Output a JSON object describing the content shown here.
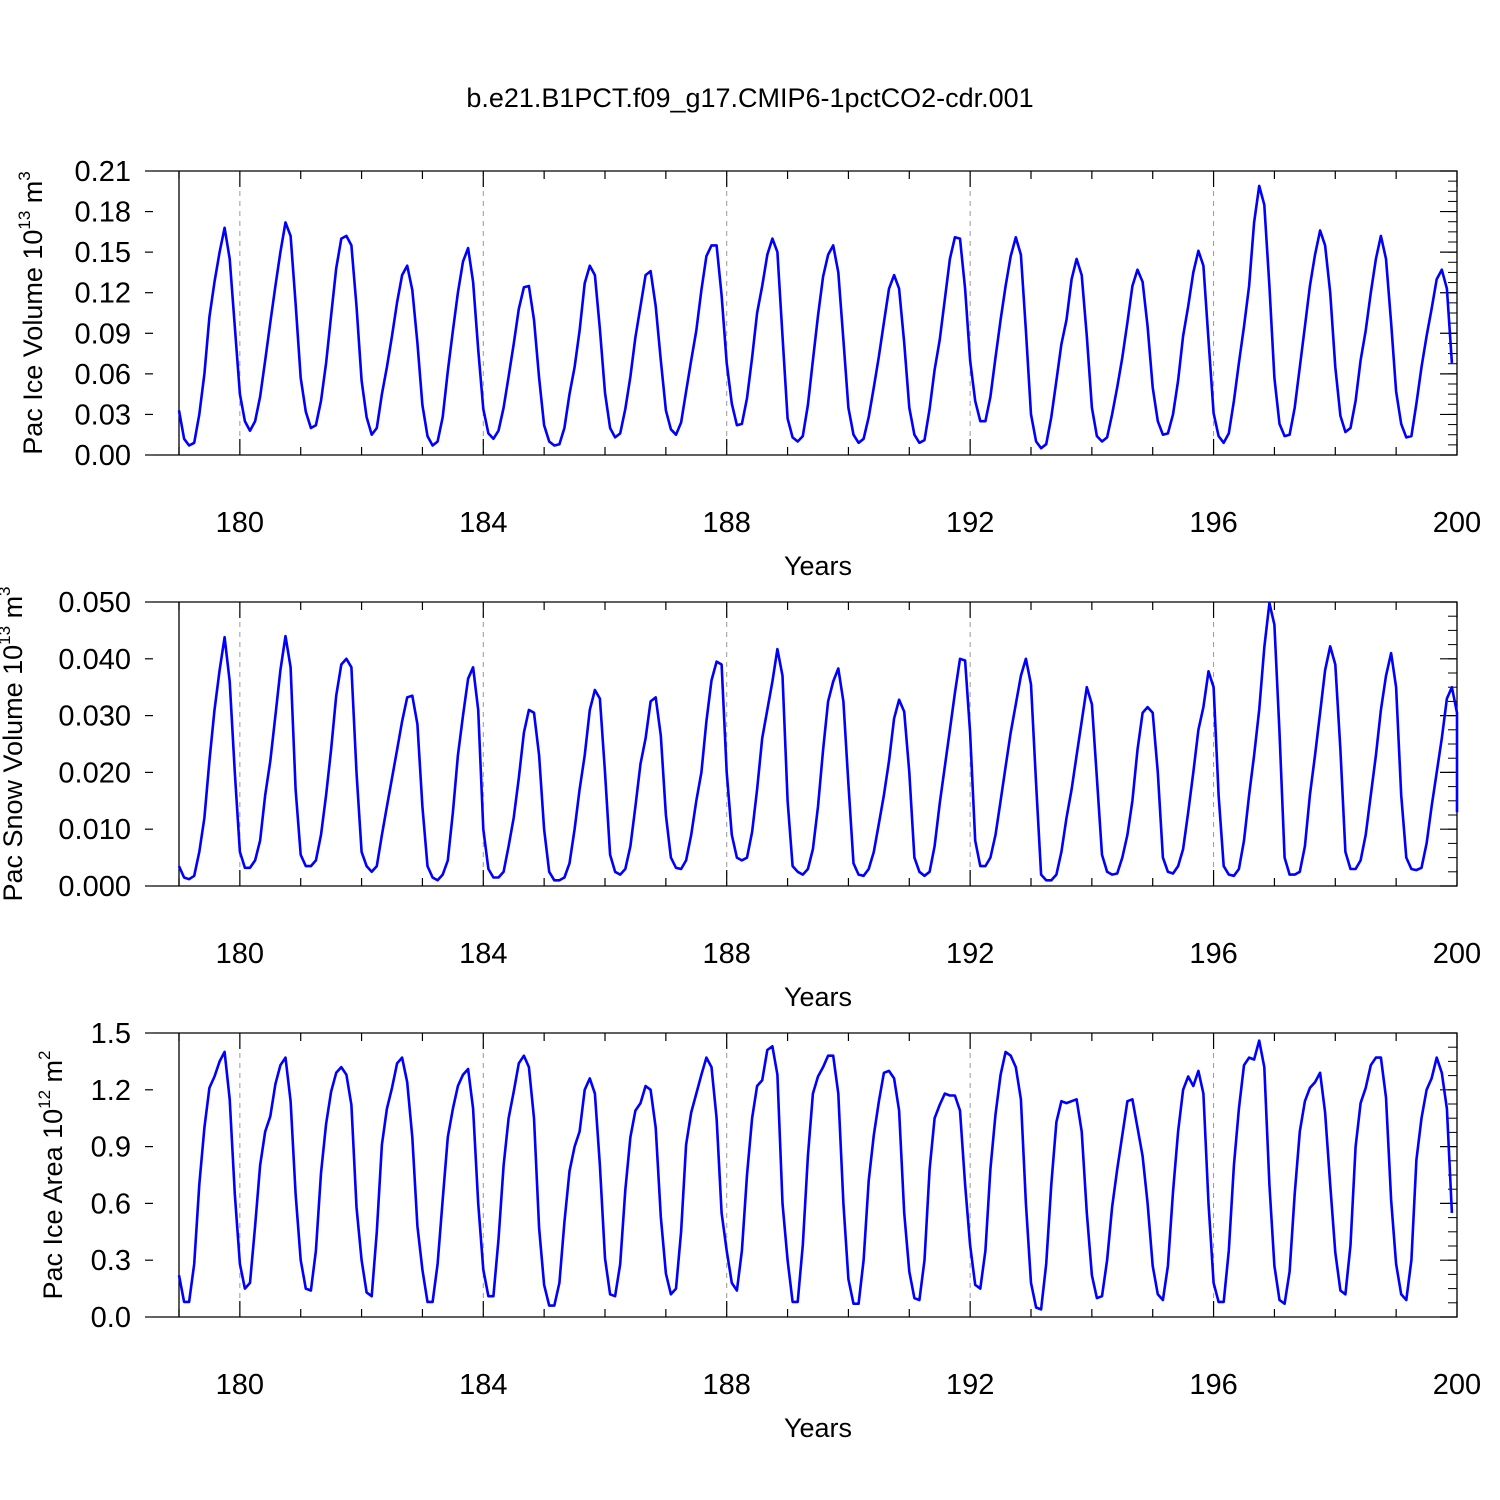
{
  "title": "b.e21.B1PCT.f09_g17.CMIP6-1pctCO2-cdr.001",
  "colors": {
    "series": "#0000ff",
    "axis": "#000000",
    "grid": "#999999",
    "background": "#ffffff"
  },
  "chart_data": [
    {
      "type": "line",
      "ylabel": {
        "prefix": "Pac Ice Volume 10",
        "exponent": "13",
        "unit": " m",
        "unit_exponent": "3"
      },
      "xlabel": "Years",
      "xlim": [
        179,
        200
      ],
      "ylim": [
        0,
        0.21
      ],
      "xticks": [
        180,
        184,
        188,
        192,
        196,
        200
      ],
      "xtick_labels": [
        "180",
        "184",
        "188",
        "192",
        "196",
        "200"
      ],
      "yticks": [
        0,
        0.03,
        0.06,
        0.09,
        0.12,
        0.15,
        0.18,
        0.21
      ],
      "ytick_labels": [
        "0.00",
        "0.03",
        "0.06",
        "0.09",
        "0.12",
        "0.15",
        "0.18",
        "0.21"
      ],
      "yminor_step": 0.0075,
      "grid": "vertical dashed at major x ticks",
      "x_start": 179.0,
      "x_step": 0.083333,
      "values": [
        0.033,
        0.012,
        0.007,
        0.009,
        0.03,
        0.06,
        0.102,
        0.128,
        0.15,
        0.168,
        0.145,
        0.095,
        0.045,
        0.025,
        0.018,
        0.025,
        0.043,
        0.07,
        0.098,
        0.125,
        0.15,
        0.172,
        0.162,
        0.112,
        0.057,
        0.032,
        0.02,
        0.022,
        0.04,
        0.068,
        0.103,
        0.138,
        0.16,
        0.162,
        0.155,
        0.11,
        0.055,
        0.028,
        0.015,
        0.02,
        0.045,
        0.065,
        0.088,
        0.113,
        0.133,
        0.14,
        0.122,
        0.083,
        0.037,
        0.014,
        0.007,
        0.01,
        0.028,
        0.062,
        0.092,
        0.12,
        0.143,
        0.153,
        0.128,
        0.078,
        0.034,
        0.016,
        0.012,
        0.018,
        0.035,
        0.058,
        0.082,
        0.108,
        0.124,
        0.125,
        0.1,
        0.057,
        0.022,
        0.01,
        0.007,
        0.008,
        0.02,
        0.045,
        0.065,
        0.092,
        0.127,
        0.14,
        0.133,
        0.093,
        0.046,
        0.02,
        0.013,
        0.016,
        0.034,
        0.058,
        0.087,
        0.11,
        0.133,
        0.136,
        0.11,
        0.07,
        0.033,
        0.019,
        0.015,
        0.024,
        0.047,
        0.07,
        0.092,
        0.122,
        0.147,
        0.155,
        0.155,
        0.118,
        0.068,
        0.038,
        0.022,
        0.023,
        0.042,
        0.072,
        0.105,
        0.125,
        0.148,
        0.16,
        0.15,
        0.088,
        0.027,
        0.013,
        0.01,
        0.014,
        0.037,
        0.07,
        0.103,
        0.132,
        0.148,
        0.155,
        0.135,
        0.085,
        0.035,
        0.015,
        0.009,
        0.012,
        0.028,
        0.05,
        0.073,
        0.098,
        0.123,
        0.133,
        0.123,
        0.083,
        0.035,
        0.015,
        0.009,
        0.011,
        0.034,
        0.063,
        0.085,
        0.115,
        0.145,
        0.161,
        0.16,
        0.123,
        0.07,
        0.04,
        0.025,
        0.025,
        0.043,
        0.072,
        0.1,
        0.125,
        0.147,
        0.161,
        0.148,
        0.092,
        0.03,
        0.01,
        0.005,
        0.008,
        0.028,
        0.055,
        0.082,
        0.1,
        0.13,
        0.145,
        0.133,
        0.088,
        0.035,
        0.014,
        0.01,
        0.013,
        0.03,
        0.05,
        0.072,
        0.098,
        0.125,
        0.137,
        0.128,
        0.095,
        0.05,
        0.025,
        0.015,
        0.016,
        0.03,
        0.055,
        0.088,
        0.11,
        0.135,
        0.151,
        0.14,
        0.085,
        0.031,
        0.014,
        0.009,
        0.016,
        0.04,
        0.068,
        0.095,
        0.125,
        0.172,
        0.199,
        0.185,
        0.125,
        0.057,
        0.023,
        0.014,
        0.015,
        0.035,
        0.065,
        0.095,
        0.125,
        0.148,
        0.166,
        0.155,
        0.12,
        0.065,
        0.029,
        0.017,
        0.02,
        0.04,
        0.07,
        0.092,
        0.12,
        0.145,
        0.162,
        0.145,
        0.098,
        0.047,
        0.023,
        0.013,
        0.014,
        0.038,
        0.065,
        0.088,
        0.108,
        0.13,
        0.137,
        0.123,
        0.068
      ]
    },
    {
      "type": "line",
      "ylabel": {
        "prefix": "Pac Snow Volume 10",
        "exponent": "13",
        "unit": " m",
        "unit_exponent": "3"
      },
      "xlabel": "Years",
      "xlim": [
        179,
        200
      ],
      "ylim": [
        0,
        0.05
      ],
      "xticks": [
        180,
        184,
        188,
        192,
        196,
        200
      ],
      "xtick_labels": [
        "180",
        "184",
        "188",
        "192",
        "196",
        "200"
      ],
      "yticks": [
        0,
        0.01,
        0.02,
        0.03,
        0.04,
        0.05
      ],
      "ytick_labels": [
        "0.000",
        "0.010",
        "0.020",
        "0.030",
        "0.040",
        "0.050"
      ],
      "yminor_step": 0.0025,
      "grid": "vertical dashed at major x ticks",
      "x_start": 179.0,
      "x_step": 0.083333,
      "values": [
        0.0035,
        0.0015,
        0.0012,
        0.0018,
        0.006,
        0.012,
        0.022,
        0.031,
        0.038,
        0.0438,
        0.036,
        0.02,
        0.006,
        0.0032,
        0.0032,
        0.0045,
        0.008,
        0.016,
        0.022,
        0.03,
        0.038,
        0.044,
        0.0385,
        0.017,
        0.0055,
        0.0035,
        0.0035,
        0.0045,
        0.009,
        0.016,
        0.024,
        0.0335,
        0.039,
        0.04,
        0.0385,
        0.02,
        0.006,
        0.0035,
        0.0025,
        0.0035,
        0.009,
        0.014,
        0.019,
        0.024,
        0.029,
        0.0332,
        0.0335,
        0.0285,
        0.014,
        0.0035,
        0.0015,
        0.001,
        0.002,
        0.0045,
        0.013,
        0.023,
        0.03,
        0.0365,
        0.0385,
        0.031,
        0.01,
        0.003,
        0.0015,
        0.0015,
        0.0025,
        0.007,
        0.012,
        0.019,
        0.027,
        0.031,
        0.0305,
        0.023,
        0.01,
        0.0025,
        0.001,
        0.001,
        0.0015,
        0.004,
        0.01,
        0.017,
        0.023,
        0.031,
        0.0345,
        0.033,
        0.02,
        0.0055,
        0.0025,
        0.002,
        0.003,
        0.007,
        0.014,
        0.0215,
        0.026,
        0.0325,
        0.0332,
        0.0265,
        0.0125,
        0.005,
        0.0032,
        0.003,
        0.0045,
        0.009,
        0.015,
        0.02,
        0.029,
        0.0362,
        0.0395,
        0.039,
        0.02,
        0.009,
        0.005,
        0.0045,
        0.005,
        0.0095,
        0.017,
        0.026,
        0.031,
        0.036,
        0.0417,
        0.037,
        0.015,
        0.0035,
        0.0025,
        0.002,
        0.003,
        0.0065,
        0.014,
        0.024,
        0.0325,
        0.036,
        0.0383,
        0.0325,
        0.018,
        0.004,
        0.002,
        0.0018,
        0.003,
        0.006,
        0.011,
        0.016,
        0.022,
        0.0295,
        0.0328,
        0.0307,
        0.02,
        0.005,
        0.0025,
        0.0018,
        0.0025,
        0.007,
        0.0145,
        0.021,
        0.0275,
        0.034,
        0.04,
        0.0397,
        0.027,
        0.008,
        0.0035,
        0.0035,
        0.005,
        0.009,
        0.015,
        0.021,
        0.027,
        0.032,
        0.037,
        0.04,
        0.0355,
        0.018,
        0.002,
        0.001,
        0.001,
        0.002,
        0.006,
        0.012,
        0.017,
        0.023,
        0.029,
        0.035,
        0.032,
        0.019,
        0.0055,
        0.0025,
        0.002,
        0.0022,
        0.005,
        0.009,
        0.015,
        0.024,
        0.0305,
        0.0315,
        0.0305,
        0.02,
        0.005,
        0.0025,
        0.0022,
        0.0035,
        0.0065,
        0.013,
        0.02,
        0.0275,
        0.0315,
        0.0378,
        0.035,
        0.016,
        0.0035,
        0.002,
        0.0018,
        0.003,
        0.008,
        0.016,
        0.023,
        0.031,
        0.042,
        0.0498,
        0.046,
        0.027,
        0.005,
        0.002,
        0.002,
        0.0025,
        0.007,
        0.016,
        0.023,
        0.0305,
        0.038,
        0.0422,
        0.039,
        0.024,
        0.006,
        0.003,
        0.003,
        0.0045,
        0.009,
        0.016,
        0.023,
        0.031,
        0.037,
        0.041,
        0.035,
        0.016,
        0.005,
        0.003,
        0.0028,
        0.0032,
        0.0075,
        0.014,
        0.02,
        0.026,
        0.033,
        0.035,
        0.0305,
        0.013
      ]
    },
    {
      "type": "line",
      "ylabel": {
        "prefix": "Pac Ice Area 10",
        "exponent": "12",
        "unit": " m",
        "unit_exponent": "2"
      },
      "xlabel": "Years",
      "xlim": [
        179,
        200
      ],
      "ylim": [
        0,
        1.5
      ],
      "xticks": [
        180,
        184,
        188,
        192,
        196,
        200
      ],
      "xtick_labels": [
        "180",
        "184",
        "188",
        "192",
        "196",
        "200"
      ],
      "yticks": [
        0,
        0.3,
        0.6,
        0.9,
        1.2,
        1.5
      ],
      "ytick_labels": [
        "0.0",
        "0.3",
        "0.6",
        "0.9",
        "1.2",
        "1.5"
      ],
      "yminor_step": 0.075,
      "grid": "vertical dashed at major x ticks",
      "x_start": 179.0,
      "x_step": 0.083333,
      "values": [
        0.22,
        0.08,
        0.08,
        0.28,
        0.7,
        1.0,
        1.21,
        1.27,
        1.35,
        1.4,
        1.15,
        0.65,
        0.28,
        0.15,
        0.18,
        0.48,
        0.8,
        0.98,
        1.06,
        1.23,
        1.33,
        1.37,
        1.14,
        0.65,
        0.3,
        0.15,
        0.14,
        0.35,
        0.76,
        1.02,
        1.19,
        1.29,
        1.32,
        1.28,
        1.12,
        0.58,
        0.3,
        0.13,
        0.11,
        0.45,
        0.91,
        1.1,
        1.21,
        1.34,
        1.37,
        1.24,
        0.95,
        0.48,
        0.25,
        0.08,
        0.08,
        0.28,
        0.62,
        0.95,
        1.1,
        1.22,
        1.28,
        1.31,
        1.1,
        0.6,
        0.25,
        0.11,
        0.11,
        0.41,
        0.8,
        1.05,
        1.19,
        1.34,
        1.38,
        1.32,
        1.05,
        0.47,
        0.17,
        0.06,
        0.06,
        0.18,
        0.5,
        0.77,
        0.9,
        0.98,
        1.2,
        1.26,
        1.18,
        0.8,
        0.31,
        0.12,
        0.11,
        0.28,
        0.67,
        0.95,
        1.09,
        1.13,
        1.22,
        1.2,
        1.0,
        0.53,
        0.23,
        0.12,
        0.15,
        0.45,
        0.91,
        1.08,
        1.18,
        1.28,
        1.37,
        1.32,
        1.05,
        0.55,
        0.35,
        0.18,
        0.14,
        0.35,
        0.75,
        1.05,
        1.22,
        1.25,
        1.41,
        1.43,
        1.28,
        0.6,
        0.3,
        0.08,
        0.08,
        0.38,
        0.85,
        1.18,
        1.27,
        1.32,
        1.38,
        1.38,
        1.18,
        0.6,
        0.2,
        0.07,
        0.07,
        0.3,
        0.72,
        0.96,
        1.14,
        1.29,
        1.3,
        1.26,
        1.09,
        0.55,
        0.24,
        0.1,
        0.09,
        0.3,
        0.78,
        1.05,
        1.12,
        1.18,
        1.17,
        1.17,
        1.09,
        0.7,
        0.38,
        0.17,
        0.15,
        0.35,
        0.78,
        1.07,
        1.28,
        1.4,
        1.38,
        1.32,
        1.15,
        0.6,
        0.18,
        0.05,
        0.04,
        0.28,
        0.7,
        1.03,
        1.14,
        1.13,
        1.14,
        1.15,
        0.98,
        0.55,
        0.22,
        0.1,
        0.11,
        0.3,
        0.58,
        0.78,
        0.96,
        1.14,
        1.15,
        1.0,
        0.85,
        0.6,
        0.27,
        0.12,
        0.09,
        0.27,
        0.66,
        0.98,
        1.2,
        1.27,
        1.22,
        1.3,
        1.18,
        0.6,
        0.18,
        0.08,
        0.08,
        0.35,
        0.8,
        1.1,
        1.33,
        1.37,
        1.36,
        1.46,
        1.32,
        0.7,
        0.27,
        0.09,
        0.07,
        0.24,
        0.65,
        0.98,
        1.14,
        1.21,
        1.24,
        1.29,
        1.08,
        0.7,
        0.34,
        0.14,
        0.12,
        0.38,
        0.9,
        1.13,
        1.21,
        1.33,
        1.37,
        1.37,
        1.16,
        0.62,
        0.28,
        0.12,
        0.09,
        0.3,
        0.83,
        1.05,
        1.2,
        1.26,
        1.37,
        1.29,
        1.1,
        0.55
      ]
    }
  ]
}
